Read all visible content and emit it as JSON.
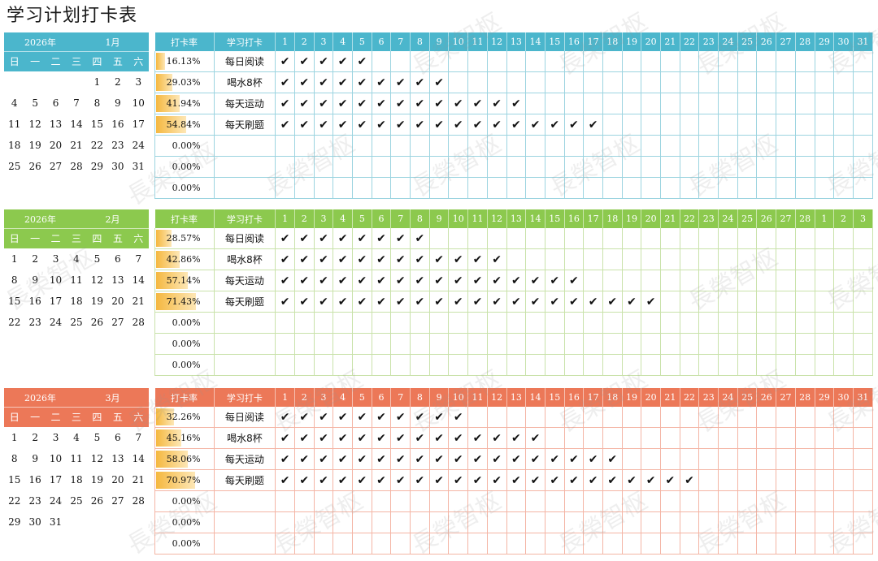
{
  "title": "学习计划打卡表",
  "watermark": "長榮智枢",
  "headers": {
    "rate": "打卡率",
    "task": "学习打卡"
  },
  "weekdays": [
    "日",
    "一",
    "二",
    "三",
    "四",
    "五",
    "六"
  ],
  "check_symbol": "✔",
  "months": [
    {
      "year_label": "2026年",
      "month_label": "1月",
      "colors": {
        "header": "#4bb6cc",
        "grid": "#9cd4e0",
        "cal_head": "#4bb6cc",
        "cal_week": "#4bb6cc"
      },
      "first_weekday": 4,
      "days_in_month": 31,
      "day_columns": [
        "1",
        "2",
        "3",
        "4",
        "5",
        "6",
        "7",
        "8",
        "9",
        "10",
        "11",
        "12",
        "13",
        "14",
        "15",
        "16",
        "17",
        "18",
        "19",
        "20",
        "21",
        "22",
        "23",
        "24",
        "25",
        "26",
        "27",
        "28",
        "29",
        "30",
        "31"
      ],
      "rows": [
        {
          "rate": "16.13%",
          "rate_value": 0.1613,
          "task": "每日阅读",
          "checks": 5
        },
        {
          "rate": "29.03%",
          "rate_value": 0.2903,
          "task": "喝水8杯",
          "checks": 9
        },
        {
          "rate": "41.94%",
          "rate_value": 0.4194,
          "task": "每天运动",
          "checks": 13
        },
        {
          "rate": "54.84%",
          "rate_value": 0.5484,
          "task": "每天刷题",
          "checks": 17
        },
        {
          "rate": "0.00%",
          "rate_value": 0,
          "task": "",
          "checks": 0
        },
        {
          "rate": "0.00%",
          "rate_value": 0,
          "task": "",
          "checks": 0
        },
        {
          "rate": "0.00%",
          "rate_value": 0,
          "task": "",
          "checks": 0
        }
      ]
    },
    {
      "year_label": "2026年",
      "month_label": "2月",
      "colors": {
        "header": "#8cc94e",
        "grid": "#c9e2aa",
        "cal_head": "#8cc94e",
        "cal_week": "#8cc94e"
      },
      "first_weekday": 0,
      "days_in_month": 28,
      "day_columns": [
        "1",
        "2",
        "3",
        "4",
        "5",
        "6",
        "7",
        "8",
        "9",
        "10",
        "11",
        "12",
        "13",
        "14",
        "15",
        "16",
        "17",
        "18",
        "19",
        "20",
        "21",
        "22",
        "23",
        "24",
        "25",
        "26",
        "27",
        "28",
        "1",
        "2",
        "3"
      ],
      "rows": [
        {
          "rate": "28.57%",
          "rate_value": 0.2857,
          "task": "每日阅读",
          "checks": 8
        },
        {
          "rate": "42.86%",
          "rate_value": 0.4286,
          "task": "喝水8杯",
          "checks": 12
        },
        {
          "rate": "57.14%",
          "rate_value": 0.5714,
          "task": "每天运动",
          "checks": 16
        },
        {
          "rate": "71.43%",
          "rate_value": 0.7143,
          "task": "每天刷题",
          "checks": 20
        },
        {
          "rate": "0.00%",
          "rate_value": 0,
          "task": "",
          "checks": 0
        },
        {
          "rate": "0.00%",
          "rate_value": 0,
          "task": "",
          "checks": 0
        },
        {
          "rate": "0.00%",
          "rate_value": 0,
          "task": "",
          "checks": 0
        }
      ]
    },
    {
      "year_label": "2026年",
      "month_label": "3月",
      "colors": {
        "header": "#ec7858",
        "grid": "#f4b5a5",
        "cal_head": "#ec7858",
        "cal_week": "#ec7858"
      },
      "first_weekday": 0,
      "days_in_month": 31,
      "day_columns": [
        "1",
        "2",
        "3",
        "4",
        "5",
        "6",
        "7",
        "8",
        "9",
        "10",
        "11",
        "12",
        "13",
        "14",
        "15",
        "16",
        "17",
        "18",
        "19",
        "20",
        "21",
        "22",
        "23",
        "24",
        "25",
        "26",
        "27",
        "28",
        "29",
        "30",
        "31"
      ],
      "rows": [
        {
          "rate": "32.26%",
          "rate_value": 0.3226,
          "task": "每日阅读",
          "checks": 10
        },
        {
          "rate": "45.16%",
          "rate_value": 0.4516,
          "task": "喝水8杯",
          "checks": 14
        },
        {
          "rate": "58.06%",
          "rate_value": 0.5806,
          "task": "每天运动",
          "checks": 18
        },
        {
          "rate": "70.97%",
          "rate_value": 0.7097,
          "task": "每天刷题",
          "checks": 22
        },
        {
          "rate": "0.00%",
          "rate_value": 0,
          "task": "",
          "checks": 0
        },
        {
          "rate": "0.00%",
          "rate_value": 0,
          "task": "",
          "checks": 0
        },
        {
          "rate": "0.00%",
          "rate_value": 0,
          "task": "",
          "checks": 0
        }
      ]
    }
  ]
}
